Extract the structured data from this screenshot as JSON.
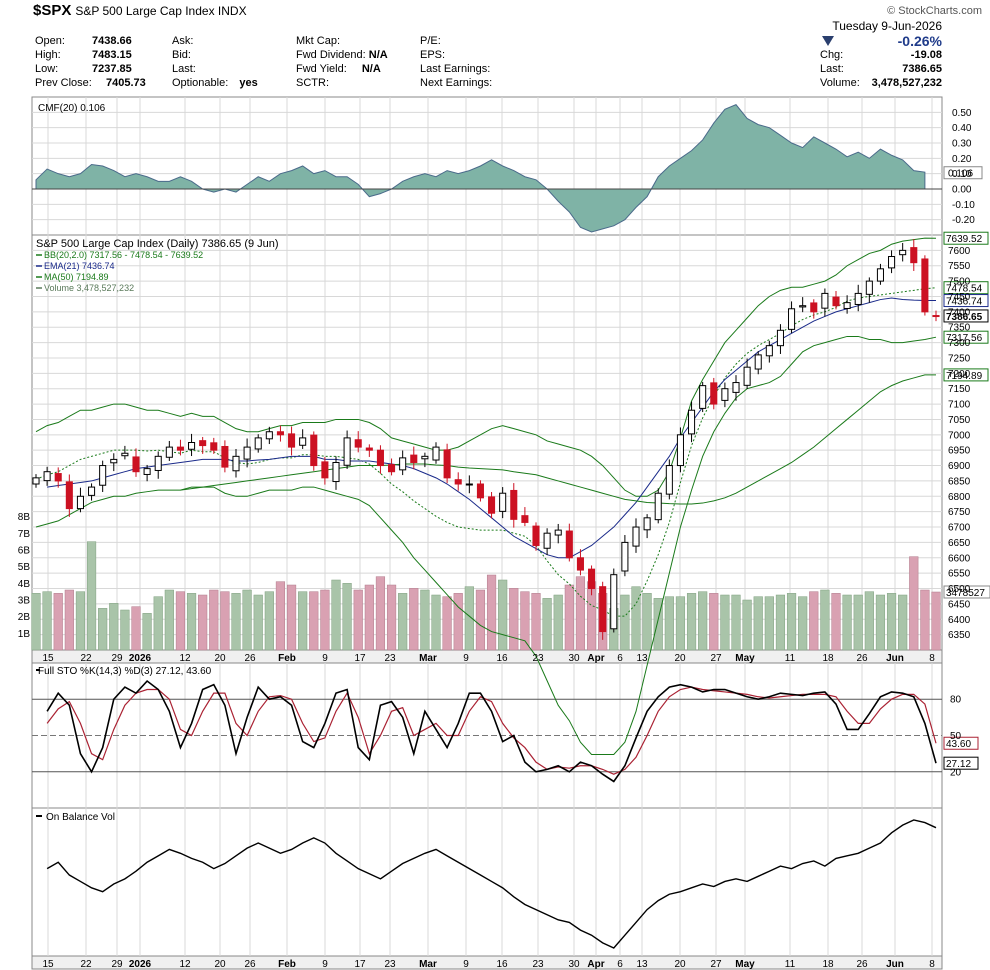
{
  "header": {
    "symbol": "$SPX",
    "name": "S&P 500 Large Cap Index",
    "exchange": "INDX",
    "brand": "© StockCharts.com",
    "date": "Tuesday  9-Jun-2026",
    "pct_change": "-0.26%",
    "open_label": "Open:",
    "open": "7438.66",
    "high_label": "High:",
    "high": "7483.15",
    "low_label": "Low:",
    "low": "7237.85",
    "prev_close_label": "Prev Close:",
    "prev_close": "7405.73",
    "ask_label": "Ask:",
    "bid_label": "Bid:",
    "last_label": "Last:",
    "optionable_label": "Optionable:",
    "optionable": "yes",
    "mktcap_label": "Mkt Cap:",
    "fwd_div_label": "Fwd Dividend:",
    "fwd_div": "N/A",
    "fwd_yield_label": "Fwd Yield:",
    "fwd_yield": "N/A",
    "sctr_label": "SCTR:",
    "pe_label": "P/E:",
    "eps_label": "EPS:",
    "last_earn_label": "Last Earnings:",
    "next_earn_label": "Next Earnings:",
    "chg_label": "Chg:",
    "chg": "-19.08",
    "last2_label": "Last:",
    "last2": "7386.65",
    "volume_label": "Volume:",
    "volume": "3,478,527,232"
  },
  "colors": {
    "cmf_fill": "#7fb3a6",
    "cmf_line": "#4a6a8a",
    "up": "#000000",
    "down": "#cc1122",
    "bb": "#1a7a1a",
    "ema": "#1a2a8a",
    "ma50": "#1a7a1a",
    "vol_up": "#a9c4a9",
    "vol_down": "#d9a1b2",
    "sto_k": "#000000",
    "sto_d": "#aa2233",
    "obv": "#000000",
    "grid": "#d8d8d8"
  },
  "chart_data": [
    {
      "type": "area",
      "title": "CMF(20) 0.106",
      "ylim": [
        -0.3,
        0.6
      ],
      "yticks": [
        "0.50",
        "0.40",
        "0.30",
        "0.20",
        "0.10",
        "0.00",
        "-0.10",
        "-0.20"
      ],
      "last_label": "0.106",
      "values": [
        0.06,
        0.13,
        0.1,
        0.08,
        0.1,
        0.16,
        0.15,
        0.12,
        0.08,
        0.1,
        0.08,
        0.05,
        0.05,
        0.08,
        0.05,
        0.0,
        -0.02,
        0.0,
        -0.02,
        0.03,
        0.08,
        0.05,
        0.1,
        0.12,
        0.15,
        0.1,
        0.12,
        0.08,
        0.08,
        0.03,
        -0.05,
        -0.03,
        0.0,
        0.05,
        0.08,
        0.1,
        0.08,
        0.12,
        0.1,
        0.12,
        0.15,
        0.19,
        0.15,
        0.12,
        0.08,
        0.06,
        0.0,
        -0.08,
        -0.15,
        -0.25,
        -0.28,
        -0.26,
        -0.24,
        -0.2,
        -0.12,
        -0.05,
        0.08,
        0.15,
        0.2,
        0.25,
        0.32,
        0.43,
        0.52,
        0.55,
        0.46,
        0.42,
        0.4,
        0.35,
        0.3,
        0.27,
        0.34,
        0.3,
        0.26,
        0.21,
        0.24,
        0.2,
        0.26,
        0.22,
        0.19,
        0.12,
        0.11
      ]
    },
    {
      "type": "candlestick",
      "title": "S&P 500 Large Cap Index (Daily) 7386.65 (9 Jun)",
      "legend": [
        "BB(20,2.0) 7317.56 - 7478.54 - 7639.52",
        "EMA(21) 7436.74",
        "MA(50) 7194.89",
        "Volume 3,478,527,232"
      ],
      "ylim": [
        6300,
        7650
      ],
      "yticks": [
        "7600",
        "7550",
        "7500",
        "7450",
        "7400",
        "7350",
        "7300",
        "7250",
        "7200",
        "7150",
        "7100",
        "7050",
        "7000",
        "6950",
        "6900",
        "6850",
        "6800",
        "6750",
        "6700",
        "6650",
        "6600",
        "6550",
        "6500",
        "6450",
        "6400",
        "6350"
      ],
      "price_labels": [
        "7639.52",
        "7478.54",
        "7436.74",
        "7386.65",
        "7317.56",
        "7194.89"
      ],
      "vol_labels": [
        "8B",
        "7B",
        "6B",
        "5B",
        "4B",
        "3B",
        "2B",
        "1B"
      ],
      "vol_last_label": "3478527",
      "vol_scale_max": 9,
      "x_labels": [
        "15",
        "22",
        "29",
        "2026",
        "12",
        "20",
        "26",
        "Feb",
        "9",
        "17",
        "23",
        "Mar",
        "9",
        "16",
        "23",
        "30",
        "Apr",
        "6",
        "13",
        "20",
        "27",
        "May",
        "11",
        "18",
        "26",
        "Jun",
        "8"
      ],
      "closes": [
        6860,
        6880,
        6850,
        6760,
        6800,
        6830,
        6900,
        6920,
        6940,
        6880,
        6890,
        6930,
        6960,
        6950,
        6975,
        6965,
        6950,
        6895,
        6930,
        6960,
        6990,
        7010,
        7000,
        6960,
        6990,
        6900,
        6860,
        6910,
        6990,
        6960,
        6950,
        6900,
        6880,
        6925,
        6910,
        6930,
        6960,
        6860,
        6840,
        6840,
        6795,
        6745,
        6810,
        6725,
        6715,
        6640,
        6680,
        6690,
        6600,
        6560,
        6500,
        6360,
        6545,
        6650,
        6700,
        6730,
        6810,
        6900,
        7000,
        7080,
        7160,
        7100,
        7150,
        7170,
        7220,
        7260,
        7290,
        7340,
        7410,
        7420,
        7400,
        7460,
        7420,
        7430,
        7460,
        7500,
        7540,
        7580,
        7600,
        7560,
        7400,
        7387
      ],
      "bb_upper": [
        7010,
        7030,
        7040,
        7060,
        7080,
        7080,
        7090,
        7100,
        7100,
        7090,
        7080,
        7080,
        7070,
        7060,
        7070,
        7060,
        7060,
        7040,
        7020,
        7010,
        7010,
        7020,
        7030,
        7030,
        7040,
        7040,
        7040,
        7050,
        7050,
        7050,
        7040,
        7020,
        6990,
        6980,
        6970,
        6960,
        6950,
        6950,
        6960,
        6980,
        7000,
        7020,
        7030,
        7020,
        7010,
        7000,
        6980,
        6970,
        6960,
        6950,
        6930,
        6900,
        6860,
        6820,
        6800,
        6800,
        6820,
        6880,
        6990,
        7110,
        7180,
        7240,
        7300,
        7340,
        7380,
        7420,
        7450,
        7470,
        7480,
        7480,
        7490,
        7500,
        7520,
        7550,
        7570,
        7590,
        7600,
        7620,
        7630,
        7635,
        7640,
        7639.52
      ],
      "bb_lower": [
        6700,
        6710,
        6720,
        6740,
        6760,
        6780,
        6790,
        6800,
        6800,
        6810,
        6815,
        6820,
        6820,
        6820,
        6830,
        6830,
        6830,
        6810,
        6800,
        6800,
        6810,
        6820,
        6820,
        6820,
        6830,
        6830,
        6820,
        6810,
        6800,
        6790,
        6770,
        6730,
        6690,
        6650,
        6600,
        6560,
        6520,
        6480,
        6440,
        6410,
        6380,
        6360,
        6350,
        6340,
        6330,
        6280,
        6200,
        6120,
        6070,
        6000,
        5960,
        5960,
        5960,
        6000,
        6100,
        6250,
        6400,
        6550,
        6700,
        6820,
        6930,
        7010,
        7070,
        7120,
        7150,
        7160,
        7170,
        7190,
        7230,
        7270,
        7290,
        7300,
        7310,
        7320,
        7320,
        7310,
        7310,
        7300,
        7300,
        7305,
        7310,
        7317.56
      ],
      "ema21": [
        6830,
        6835,
        6840,
        6845,
        6850,
        6860,
        6870,
        6880,
        6890,
        6895,
        6900,
        6905,
        6910,
        6915,
        6920,
        6920,
        6920,
        6915,
        6915,
        6918,
        6920,
        6925,
        6930,
        6930,
        6930,
        6920,
        6920,
        6915,
        6915,
        6915,
        6910,
        6905,
        6900,
        6890,
        6875,
        6860,
        6840,
        6815,
        6790,
        6760,
        6730,
        6700,
        6670,
        6650,
        6630,
        6610,
        6600,
        6600,
        6620,
        6640,
        6670,
        6700,
        6740,
        6780,
        6830,
        6880,
        6930,
        6990,
        7040,
        7090,
        7140,
        7180,
        7210,
        7240,
        7270,
        7290,
        7310,
        7330,
        7350,
        7370,
        7385,
        7400,
        7410,
        7420,
        7430,
        7440,
        7445,
        7440,
        7438,
        7437,
        7436.74
      ],
      "ma50": [
        6820,
        6825,
        6830,
        6835,
        6840,
        6845,
        6850,
        6855,
        6860,
        6865,
        6870,
        6875,
        6880,
        6885,
        6890,
        6895,
        6900,
        6900,
        6900,
        6902,
        6905,
        6905,
        6905,
        6902,
        6900,
        6895,
        6892,
        6890,
        6888,
        6886,
        6880,
        6875,
        6870,
        6860,
        6850,
        6840,
        6830,
        6820,
        6810,
        6800,
        6790,
        6785,
        6780,
        6778,
        6776,
        6775,
        6775,
        6778,
        6785,
        6795,
        6810,
        6830,
        6850,
        6870,
        6890,
        6910,
        6935,
        6960,
        6990,
        7020,
        7050,
        7080,
        7110,
        7140,
        7160,
        7175,
        7185,
        7195,
        7194.89
      ],
      "volumes": [
        3.4,
        3.5,
        3.4,
        3.6,
        3.5,
        6.5,
        2.5,
        2.8,
        2.4,
        2.6,
        2.2,
        3.2,
        3.6,
        3.5,
        3.4,
        3.3,
        3.6,
        3.5,
        3.4,
        3.6,
        3.3,
        3.5,
        4.1,
        3.9,
        3.5,
        3.5,
        3.6,
        4.2,
        4.0,
        3.6,
        3.9,
        4.4,
        3.9,
        3.4,
        3.7,
        3.6,
        3.3,
        3.2,
        3.4,
        3.8,
        3.6,
        4.5,
        4.2,
        3.7,
        3.5,
        3.4,
        3.1,
        3.3,
        3.9,
        4.4,
        4.1,
        3.4,
        2.5,
        3.3,
        3.8,
        3.4,
        3.1,
        3.2,
        3.2,
        3.4,
        3.5,
        3.4,
        3.3,
        3.3,
        3.0,
        3.2,
        3.2,
        3.3,
        3.4,
        3.2,
        3.5,
        3.6,
        3.4,
        3.3,
        3.3,
        3.5,
        3.3,
        3.4,
        3.3,
        5.6,
        3.6,
        3.48
      ]
    },
    {
      "type": "line",
      "title": "Full STO %K(14,3) %D(3) 27.12, 43.60",
      "ylim": [
        0,
        100
      ],
      "yticks": [
        "80",
        "50",
        "20"
      ],
      "k_last_label": "27.12",
      "d_last_label": "43.60",
      "k": [
        70,
        85,
        75,
        35,
        20,
        40,
        80,
        90,
        85,
        95,
        88,
        70,
        40,
        60,
        88,
        92,
        75,
        35,
        65,
        90,
        80,
        82,
        75,
        45,
        40,
        60,
        85,
        88,
        40,
        30,
        75,
        78,
        65,
        35,
        70,
        55,
        40,
        60,
        85,
        85,
        70,
        45,
        50,
        28,
        20,
        22,
        25,
        20,
        28,
        25,
        18,
        12,
        25,
        48,
        70,
        82,
        90,
        92,
        90,
        86,
        88,
        88,
        85,
        82,
        80,
        82,
        85,
        84,
        83,
        85,
        86,
        76,
        55,
        55,
        68,
        82,
        86,
        85,
        82,
        60,
        27.12
      ],
      "d": [
        60,
        72,
        78,
        60,
        35,
        30,
        55,
        75,
        85,
        88,
        88,
        80,
        55,
        50,
        70,
        85,
        85,
        60,
        50,
        70,
        82,
        83,
        80,
        60,
        45,
        48,
        70,
        85,
        65,
        35,
        50,
        70,
        73,
        50,
        55,
        60,
        50,
        50,
        70,
        82,
        78,
        60,
        48,
        40,
        28,
        22,
        24,
        23,
        25,
        25,
        22,
        18,
        22,
        32,
        50,
        70,
        82,
        88,
        90,
        88,
        87,
        86,
        85,
        84,
        82,
        81,
        82,
        83,
        84,
        84,
        84,
        82,
        70,
        60,
        60,
        72,
        80,
        84,
        84,
        76,
        43.6
      ]
    },
    {
      "type": "line",
      "title": "On Balance Vol",
      "values": [
        80,
        85,
        75,
        70,
        65,
        62,
        68,
        72,
        78,
        85,
        90,
        95,
        92,
        88,
        85,
        80,
        84,
        90,
        96,
        100,
        96,
        92,
        95,
        100,
        104,
        100,
        92,
        86,
        80,
        76,
        72,
        78,
        84,
        88,
        92,
        95,
        90,
        85,
        80,
        75,
        70,
        65,
        58,
        52,
        48,
        44,
        40,
        38,
        32,
        28,
        22,
        18,
        28,
        38,
        48,
        55,
        60,
        62,
        65,
        68,
        66,
        70,
        72,
        70,
        74,
        78,
        82,
        80,
        84,
        86,
        82,
        88,
        90,
        92,
        96,
        100,
        108,
        114,
        118,
        116,
        112
      ]
    }
  ]
}
